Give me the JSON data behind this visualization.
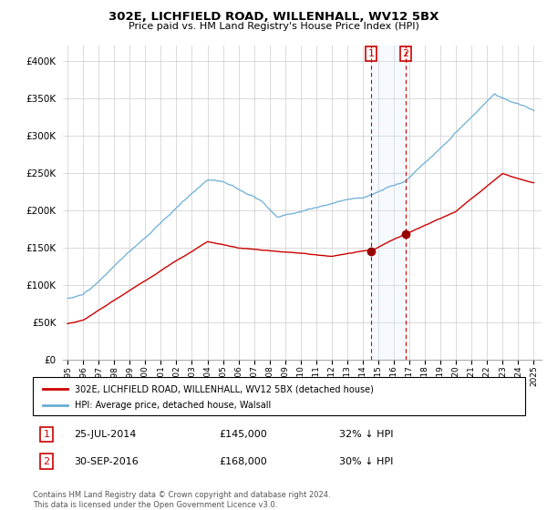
{
  "title": "302E, LICHFIELD ROAD, WILLENHALL, WV12 5BX",
  "subtitle": "Price paid vs. HM Land Registry's House Price Index (HPI)",
  "legend_entry1": "302E, LICHFIELD ROAD, WILLENHALL, WV12 5BX (detached house)",
  "legend_entry2": "HPI: Average price, detached house, Walsall",
  "sale1_date": "25-JUL-2014",
  "sale1_price": 145000,
  "sale1_label": "32% ↓ HPI",
  "sale2_date": "30-SEP-2016",
  "sale2_price": 168000,
  "sale2_label": "30% ↓ HPI",
  "footnote": "Contains HM Land Registry data © Crown copyright and database right 2024.\nThis data is licensed under the Open Government Licence v3.0.",
  "hpi_color": "#6baed6",
  "price_color": "#cc0000",
  "sale_marker_color": "#990000",
  "annotation_box_color": "#cc0000",
  "vertical_line_color": "#cc0000",
  "shade_color": "#ddeeff",
  "ylim": [
    0,
    420000
  ],
  "yticks": [
    0,
    50000,
    100000,
    150000,
    200000,
    250000,
    300000,
    350000,
    400000
  ],
  "xstart_year": 1995,
  "xend_year": 2025,
  "background_color": "#ffffff",
  "grid_color": "#cccccc",
  "sale1_year": 2014.54,
  "sale2_year": 2016.75
}
